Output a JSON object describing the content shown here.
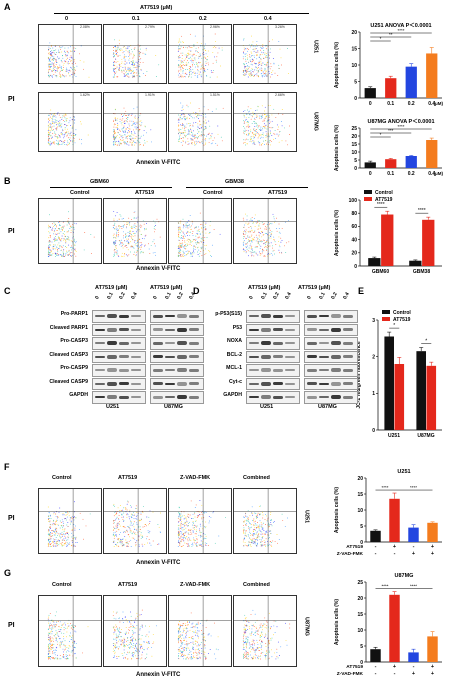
{
  "panels": {
    "A": "A",
    "B": "B",
    "C": "C",
    "D": "D",
    "E": "E",
    "F": "F",
    "G": "G"
  },
  "axes": {
    "pi": "PI",
    "annexin": "Annexin V-FITC"
  },
  "panelA": {
    "drug_label": "AT7519 (μM)",
    "doses": [
      "0",
      "0.1",
      "0.2",
      "0.4"
    ],
    "row_labels": [
      "U251",
      "U87MG"
    ],
    "quadrants": [
      [
        "2.08%",
        "2.79%",
        "2.96%",
        "3.26%"
      ],
      [
        "1.62%",
        "1.91%",
        "1.51%",
        "2.66%"
      ]
    ]
  },
  "panelB": {
    "groups": [
      "GBM60",
      "GBM38"
    ],
    "conditions": [
      "Control",
      "AT7519",
      "Control",
      "AT7519"
    ]
  },
  "panelC": {
    "drug_label": "AT7519 (μM)",
    "doses": [
      "0",
      "0.1",
      "0.2",
      "0.4"
    ],
    "rows": [
      "Pro-PARP1",
      "Cleaved PARP1",
      "Pro-CASP3",
      "Cleaved CASP3",
      "Pro-CASP9",
      "Cleaved CASP9",
      "GAPDH"
    ],
    "cells": [
      "U251",
      "U87MG"
    ]
  },
  "panelD": {
    "drug_label": "AT7519 (μM)",
    "doses": [
      "0",
      "0.1",
      "0.2",
      "0.4"
    ],
    "rows": [
      "p-P53(S15)",
      "P53",
      "NOXA",
      "BCL-2",
      "MCL-1",
      "Cyt-c",
      "GAPDH"
    ],
    "cells": [
      "U251",
      "U87MG"
    ]
  },
  "panelFG": {
    "conditions": [
      "Control",
      "AT7519",
      "Z-VAD-FMK",
      "Combined"
    ],
    "F_row": "U251",
    "G_row": "U87MG"
  },
  "signs": {
    "plus": "+",
    "minus": "-"
  },
  "chart_data": [
    {
      "id": "A1",
      "type": "bar",
      "title": "U251 ANOVA P＜0.0001",
      "ylabel": "Apoptosis cells (%)",
      "xlabel": "",
      "categories": [
        "0",
        "0.1",
        "0.2",
        "0.4"
      ],
      "values": [
        3,
        6,
        9.5,
        13.5
      ],
      "errors": [
        0.4,
        0.6,
        0.9,
        1.8
      ],
      "ylim": [
        0,
        20
      ],
      "yticks": [
        0,
        5,
        10,
        15,
        20
      ],
      "unit": "(μM)",
      "colors": [
        "#111111",
        "#e4281c",
        "#2346e0",
        "#f47c1e"
      ],
      "sig": [
        "*",
        "**",
        "****"
      ]
    },
    {
      "id": "A2",
      "type": "bar",
      "title": "U87MG ANOVA P＜0.0001",
      "ylabel": "Apoptosis cells (%)",
      "xlabel": "",
      "categories": [
        "0",
        "0.1",
        "0.2",
        "0.4"
      ],
      "values": [
        3.5,
        5.5,
        7.5,
        17.5
      ],
      "errors": [
        0.8,
        0.5,
        0.3,
        1.2
      ],
      "ylim": [
        0,
        25
      ],
      "yticks": [
        0,
        5,
        10,
        15,
        20,
        25
      ],
      "unit": "(μM)",
      "colors": [
        "#111111",
        "#e4281c",
        "#2346e0",
        "#f47c1e"
      ],
      "sig": [
        "*",
        "***",
        "****"
      ]
    },
    {
      "id": "B",
      "type": "bar",
      "ylabel": "Apoptosis cells (%)",
      "categories": [
        "GBM60",
        "GBM38"
      ],
      "series": [
        {
          "name": "Control",
          "values": [
            12,
            8
          ],
          "errors": [
            1.5,
            1.2
          ]
        },
        {
          "name": "AT7519",
          "values": [
            78,
            70
          ],
          "errors": [
            5,
            4
          ]
        }
      ],
      "ylim": [
        0,
        100
      ],
      "yticks": [
        0,
        20,
        40,
        60,
        80,
        100
      ],
      "legend": "top-left",
      "colors": [
        "#111111",
        "#e4281c"
      ],
      "sig": [
        "****",
        "****"
      ]
    },
    {
      "id": "E",
      "type": "bar",
      "ylabel": "JC-1 red/green fluorescence",
      "categories": [
        "U251",
        "U87MG"
      ],
      "series": [
        {
          "name": "Control",
          "values": [
            2.55,
            2.15
          ],
          "errors": [
            0.12,
            0.1
          ]
        },
        {
          "name": "AT7519",
          "values": [
            1.8,
            1.75
          ],
          "errors": [
            0.18,
            0.1
          ]
        }
      ],
      "ylim": [
        0,
        3
      ],
      "yticks": [
        0,
        1,
        2,
        3
      ],
      "legend": "top-left",
      "colors": [
        "#111111",
        "#e4281c"
      ],
      "sig": [
        "*",
        "*"
      ]
    },
    {
      "id": "F",
      "type": "bar",
      "title": "U251",
      "ylabel": "Apoptosis cells (%)",
      "categories": [
        "Control",
        "AT7519",
        "Z-VAD-FMK",
        "Combined"
      ],
      "values": [
        3.5,
        13.5,
        4.5,
        6
      ],
      "errors": [
        0.3,
        1.8,
        0.9,
        0.3
      ],
      "ylim": [
        0,
        20
      ],
      "yticks": [
        0,
        5,
        10,
        15,
        20
      ],
      "colors": [
        "#111111",
        "#e4281c",
        "#2346e0",
        "#f47c1e"
      ],
      "row_labels": [
        "AT7519",
        "Z-VAD-FMK"
      ],
      "signs": [
        [
          "-",
          "+",
          "-",
          "+"
        ],
        [
          "-",
          "-",
          "+",
          "+"
        ]
      ],
      "sig": [
        "****",
        "****"
      ]
    },
    {
      "id": "G",
      "type": "bar",
      "title": "U87MG",
      "ylabel": "Apoptosis cells (%)",
      "categories": [
        "Control",
        "AT7519",
        "Z-VAD-FMK",
        "Combined"
      ],
      "values": [
        4,
        21,
        3,
        8
      ],
      "errors": [
        0.6,
        1,
        1,
        1.5
      ],
      "ylim": [
        0,
        25
      ],
      "yticks": [
        0,
        5,
        10,
        15,
        20,
        25
      ],
      "colors": [
        "#111111",
        "#e4281c",
        "#2346e0",
        "#f47c1e"
      ],
      "row_labels": [
        "AT7519",
        "Z-VAD-FMK"
      ],
      "signs": [
        [
          "-",
          "+",
          "-",
          "+"
        ],
        [
          "-",
          "-",
          "+",
          "+"
        ]
      ],
      "sig": [
        "****",
        "****"
      ]
    }
  ]
}
